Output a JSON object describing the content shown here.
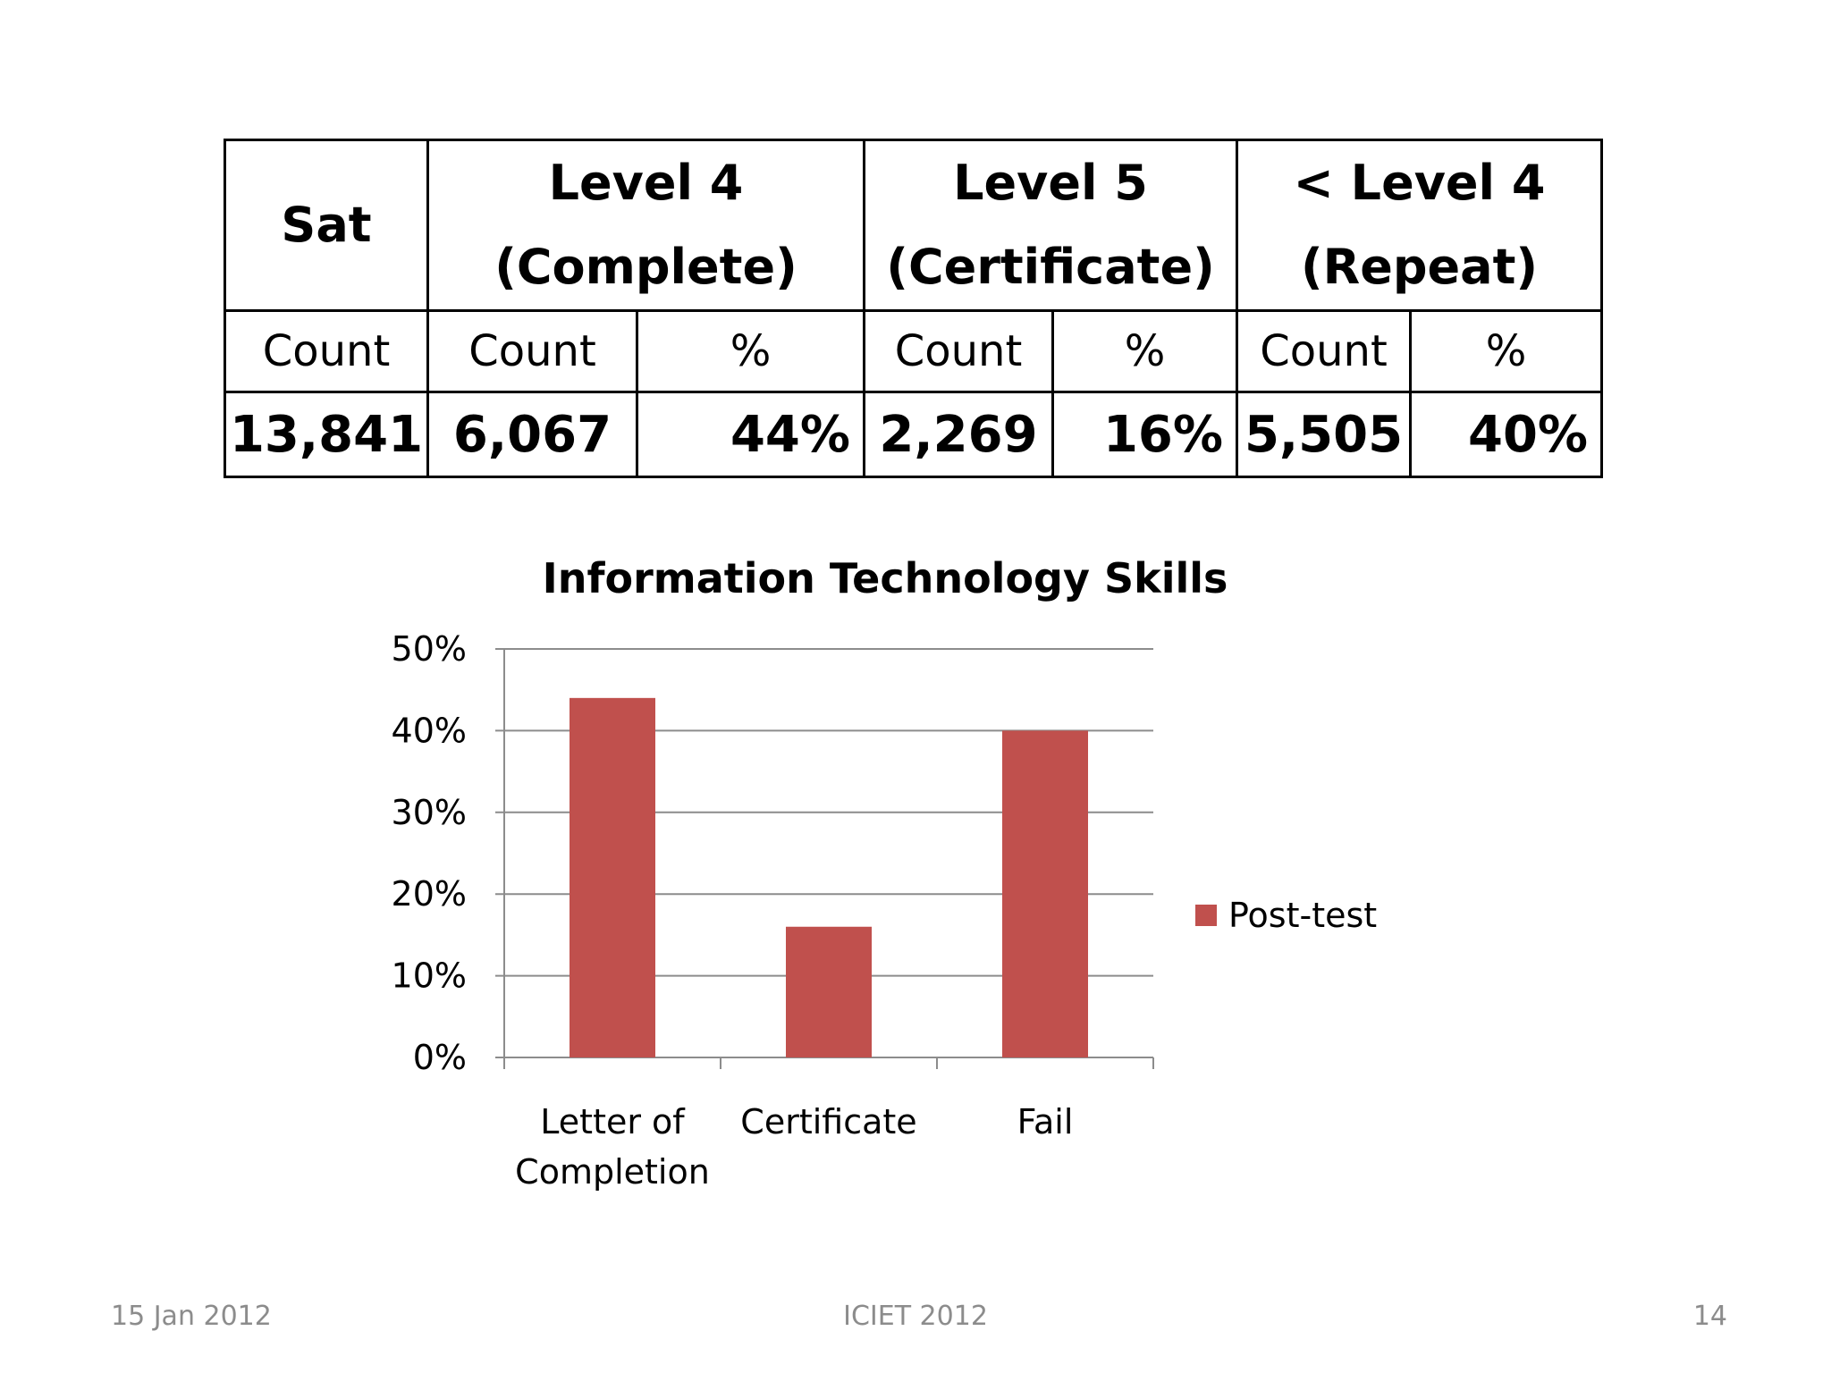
{
  "table": {
    "header": {
      "sat": "Sat",
      "level4": [
        "Level 4",
        "(Complete)"
      ],
      "level5": [
        "Level 5",
        "(Certificate)"
      ],
      "below4": [
        "< Level 4",
        "(Repeat)"
      ]
    },
    "subheader": [
      "Count",
      "Count",
      "%",
      "Count",
      "%",
      "Count",
      "%"
    ],
    "values": [
      "13,841",
      "6,067",
      "44%",
      "2,269",
      "16%",
      "5,505",
      "40%"
    ]
  },
  "chart_data": {
    "type": "bar",
    "title": "Information Technology Skills",
    "categories": [
      "Letter of Completion",
      "Certificate",
      "Fail"
    ],
    "category_lines": [
      [
        "Letter of",
        "Completion"
      ],
      [
        "Certificate"
      ],
      [
        "Fail"
      ]
    ],
    "series": [
      {
        "name": "Post-test",
        "values": [
          0.44,
          0.16,
          0.4
        ],
        "color": "#c0504d"
      }
    ],
    "ylim": [
      0,
      0.5
    ],
    "yticks": [
      0,
      0.1,
      0.2,
      0.3,
      0.4,
      0.5
    ],
    "ytick_labels": [
      "0%",
      "10%",
      "20%",
      "30%",
      "40%",
      "50%"
    ],
    "xlabel": "",
    "ylabel": "",
    "grid": true,
    "legend_position": "right"
  },
  "footer": {
    "date": "15 Jan 2012",
    "event": "ICIET 2012",
    "page": "14"
  }
}
